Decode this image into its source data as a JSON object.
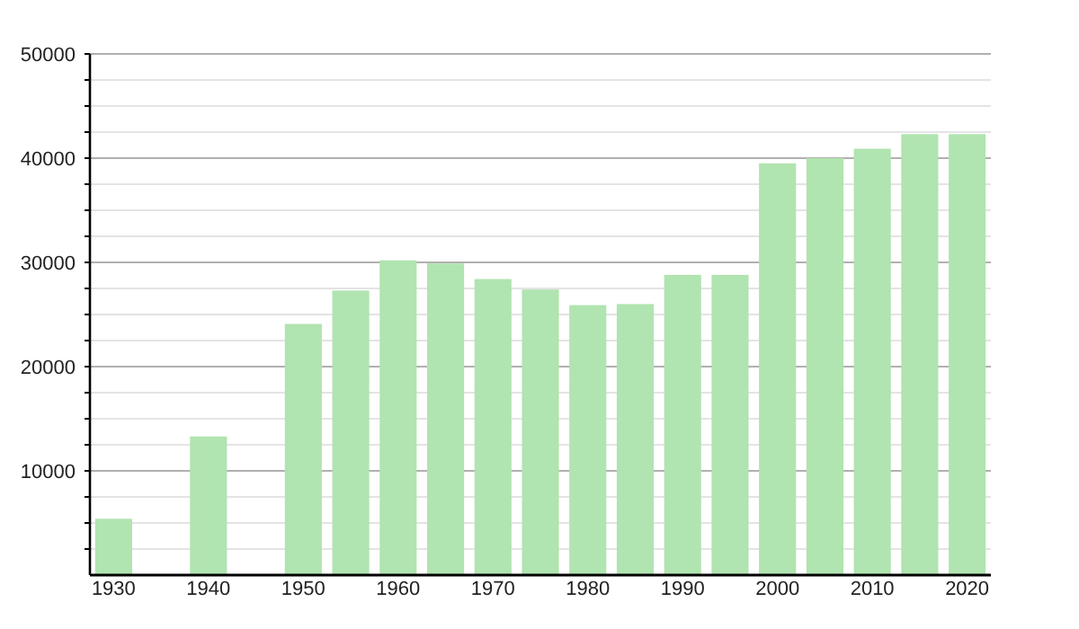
{
  "chart_data": {
    "type": "bar",
    "x": [
      1930,
      1940,
      1950,
      1955,
      1960,
      1965,
      1970,
      1975,
      1980,
      1985,
      1990,
      1995,
      2000,
      2005,
      2010,
      2015,
      2020
    ],
    "values": [
      5400,
      13300,
      24100,
      27300,
      30200,
      29900,
      28400,
      27400,
      25900,
      26000,
      28800,
      28800,
      39500,
      40000,
      40900,
      42300,
      42300
    ],
    "color": "#b0e4b0",
    "xlim": [
      1927.5,
      2022.5
    ],
    "xticks": [
      1930,
      1940,
      1950,
      1960,
      1970,
      1980,
      1990,
      2000,
      2010,
      2020
    ],
    "ylim": [
      0,
      50000
    ],
    "yticks": [
      {
        "value": 2500,
        "label": null
      },
      {
        "value": 5000,
        "label": null
      },
      {
        "value": 7500,
        "label": null
      },
      10000,
      {
        "value": 12500,
        "label": null
      },
      {
        "value": 15000,
        "label": null
      },
      {
        "value": 17500,
        "label": null
      },
      20000,
      {
        "value": 22500,
        "label": null
      },
      {
        "value": 25000,
        "label": null
      },
      {
        "value": 27500,
        "label": null
      },
      30000,
      {
        "value": 32500,
        "label": null
      },
      {
        "value": 35000,
        "label": null
      },
      {
        "value": 37500,
        "label": null
      },
      40000,
      {
        "value": 42500,
        "label": null
      },
      {
        "value": 45000,
        "label": null
      },
      {
        "value": 47500,
        "label": null
      },
      50000
    ],
    "grid": "y"
  }
}
